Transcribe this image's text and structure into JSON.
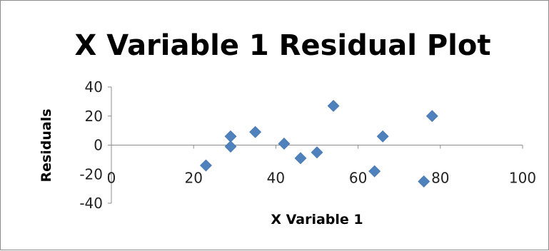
{
  "chart_data": {
    "type": "scatter",
    "title": "X Variable 1  Residual Plot",
    "xlabel": "X Variable 1",
    "ylabel": "Residuals",
    "xlim": [
      0,
      100
    ],
    "ylim": [
      -40,
      40
    ],
    "xticks": [
      "0",
      "20",
      "40",
      "60",
      "80",
      "100"
    ],
    "yticks": [
      "40",
      "20",
      "0",
      "-20",
      "-40"
    ],
    "grid": false,
    "legend": "none",
    "marker": "diamond",
    "marker_color": "#4f81bd",
    "points": [
      {
        "x": 23,
        "y": -14
      },
      {
        "x": 29,
        "y": 6
      },
      {
        "x": 29,
        "y": -1
      },
      {
        "x": 35,
        "y": 9
      },
      {
        "x": 42,
        "y": 1
      },
      {
        "x": 46,
        "y": -9
      },
      {
        "x": 50,
        "y": -5
      },
      {
        "x": 54,
        "y": 27
      },
      {
        "x": 64,
        "y": -18
      },
      {
        "x": 66,
        "y": 6
      },
      {
        "x": 76,
        "y": -25
      },
      {
        "x": 78,
        "y": 20
      }
    ]
  }
}
